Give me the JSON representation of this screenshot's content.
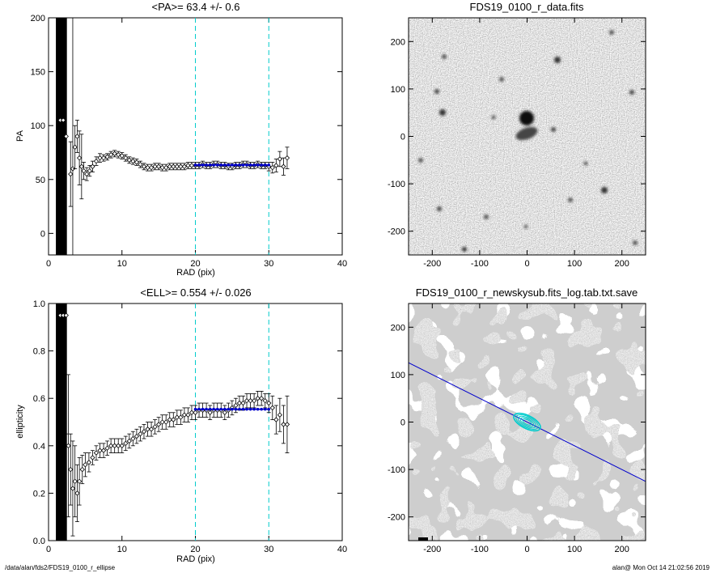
{
  "chart_data": [
    {
      "type": "scatter",
      "title": "<PA>=  63.4 +/-   0.6",
      "xlabel": "RAD (pix)",
      "ylabel": "PA",
      "xlim": [
        0,
        40
      ],
      "ylim": [
        -20,
        200
      ],
      "xticks": [
        0,
        10,
        20,
        30,
        40
      ],
      "yticks": [
        0,
        50,
        100,
        150,
        200
      ],
      "fit_range": [
        20,
        30
      ],
      "fit_value": 63.4,
      "fit_color": "#0000cc",
      "range_line_color": "#00cccc",
      "points": [
        {
          "x": 1.6,
          "y": 105,
          "err": 150
        },
        {
          "x": 2.0,
          "y": 105,
          "err": 150
        },
        {
          "x": 2.4,
          "y": 90,
          "err": 120
        },
        {
          "x": 3.0,
          "y": 55,
          "err": 30
        },
        {
          "x": 3.3,
          "y": 60,
          "err": 140
        },
        {
          "x": 3.6,
          "y": 80,
          "err": 20
        },
        {
          "x": 3.9,
          "y": 90,
          "err": 15
        },
        {
          "x": 4.2,
          "y": 70,
          "err": 25
        },
        {
          "x": 4.5,
          "y": 62,
          "err": 30
        },
        {
          "x": 4.8,
          "y": 58,
          "err": 8
        },
        {
          "x": 5.2,
          "y": 55,
          "err": 6
        },
        {
          "x": 5.6,
          "y": 58,
          "err": 5
        },
        {
          "x": 6.0,
          "y": 62,
          "err": 5
        },
        {
          "x": 6.5,
          "y": 67,
          "err": 4
        },
        {
          "x": 7.0,
          "y": 70,
          "err": 4
        },
        {
          "x": 7.5,
          "y": 70,
          "err": 3
        },
        {
          "x": 8.0,
          "y": 71,
          "err": 3
        },
        {
          "x": 8.5,
          "y": 73,
          "err": 3
        },
        {
          "x": 9.0,
          "y": 74,
          "err": 3
        },
        {
          "x": 9.5,
          "y": 73,
          "err": 3
        },
        {
          "x": 10.0,
          "y": 72,
          "err": 3
        },
        {
          "x": 10.5,
          "y": 70,
          "err": 3
        },
        {
          "x": 11.0,
          "y": 68,
          "err": 3
        },
        {
          "x": 11.5,
          "y": 67,
          "err": 3
        },
        {
          "x": 12.0,
          "y": 66,
          "err": 3
        },
        {
          "x": 12.5,
          "y": 64,
          "err": 3
        },
        {
          "x": 13.0,
          "y": 62,
          "err": 3
        },
        {
          "x": 13.5,
          "y": 61,
          "err": 3
        },
        {
          "x": 14.0,
          "y": 61,
          "err": 3
        },
        {
          "x": 14.5,
          "y": 62,
          "err": 3
        },
        {
          "x": 15.0,
          "y": 62,
          "err": 3
        },
        {
          "x": 15.5,
          "y": 61,
          "err": 3
        },
        {
          "x": 16.0,
          "y": 61,
          "err": 3
        },
        {
          "x": 16.5,
          "y": 62,
          "err": 3
        },
        {
          "x": 17.0,
          "y": 62,
          "err": 3
        },
        {
          "x": 17.5,
          "y": 62,
          "err": 3
        },
        {
          "x": 18.0,
          "y": 62,
          "err": 3
        },
        {
          "x": 18.5,
          "y": 62,
          "err": 3
        },
        {
          "x": 19.0,
          "y": 63,
          "err": 3
        },
        {
          "x": 19.5,
          "y": 63,
          "err": 3
        },
        {
          "x": 20.0,
          "y": 63,
          "err": 3
        },
        {
          "x": 20.5,
          "y": 63,
          "err": 3
        },
        {
          "x": 21.0,
          "y": 64,
          "err": 3
        },
        {
          "x": 21.5,
          "y": 63,
          "err": 3
        },
        {
          "x": 22.0,
          "y": 63,
          "err": 3
        },
        {
          "x": 22.5,
          "y": 64,
          "err": 3
        },
        {
          "x": 23.0,
          "y": 64,
          "err": 3
        },
        {
          "x": 23.5,
          "y": 63,
          "err": 3
        },
        {
          "x": 24.0,
          "y": 63,
          "err": 3
        },
        {
          "x": 24.5,
          "y": 62,
          "err": 3
        },
        {
          "x": 25.0,
          "y": 62,
          "err": 3
        },
        {
          "x": 25.5,
          "y": 63,
          "err": 3
        },
        {
          "x": 26.0,
          "y": 63,
          "err": 3
        },
        {
          "x": 26.5,
          "y": 64,
          "err": 3
        },
        {
          "x": 27.0,
          "y": 64,
          "err": 3
        },
        {
          "x": 27.5,
          "y": 63,
          "err": 3
        },
        {
          "x": 28.0,
          "y": 63,
          "err": 3
        },
        {
          "x": 28.5,
          "y": 64,
          "err": 3
        },
        {
          "x": 29.0,
          "y": 63,
          "err": 3
        },
        {
          "x": 29.5,
          "y": 63,
          "err": 3
        },
        {
          "x": 30.0,
          "y": 62,
          "err": 4
        },
        {
          "x": 30.5,
          "y": 61,
          "err": 5
        },
        {
          "x": 31.0,
          "y": 63,
          "err": 6
        },
        {
          "x": 31.5,
          "y": 69,
          "err": 7
        },
        {
          "x": 32.0,
          "y": 62,
          "err": 8
        },
        {
          "x": 32.5,
          "y": 70,
          "err": 10
        }
      ]
    },
    {
      "type": "heatmap",
      "title": "FDS19_0100_r_data.fits",
      "xlim": [
        -250,
        250
      ],
      "ylim": [
        -250,
        250
      ],
      "xticks": [
        -200,
        -100,
        0,
        100,
        200
      ],
      "yticks": [
        -200,
        -100,
        0,
        100,
        200
      ],
      "grid": false,
      "colormap": "grayscale"
    },
    {
      "type": "scatter",
      "title": "<ELL>= 0.554 +/-  0.026",
      "xlabel": "RAD (pix)",
      "ylabel": "ellipticity",
      "xlim": [
        0,
        40
      ],
      "ylim": [
        0.0,
        1.0
      ],
      "xticks": [
        0,
        10,
        20,
        30,
        40
      ],
      "yticks": [
        "0.0",
        "0.2",
        "0.4",
        "0.6",
        "0.8",
        "1.0"
      ],
      "fit_range": [
        20,
        30
      ],
      "fit_value": 0.554,
      "fit_color": "#0000cc",
      "range_line_color": "#00cccc",
      "points": [
        {
          "x": 1.6,
          "y": 0.95,
          "err": 0.5
        },
        {
          "x": 2.0,
          "y": 0.95,
          "err": 0.5
        },
        {
          "x": 2.4,
          "y": 0.95,
          "err": 0.5
        },
        {
          "x": 2.7,
          "y": 0.4,
          "err": 0.3
        },
        {
          "x": 3.0,
          "y": 0.3,
          "err": 0.15
        },
        {
          "x": 3.3,
          "y": 0.22,
          "err": 0.2
        },
        {
          "x": 3.6,
          "y": 0.25,
          "err": 0.15
        },
        {
          "x": 3.9,
          "y": 0.2,
          "err": 0.12
        },
        {
          "x": 4.2,
          "y": 0.25,
          "err": 0.1
        },
        {
          "x": 4.6,
          "y": 0.3,
          "err": 0.06
        },
        {
          "x": 5.0,
          "y": 0.32,
          "err": 0.05
        },
        {
          "x": 5.5,
          "y": 0.33,
          "err": 0.04
        },
        {
          "x": 6.0,
          "y": 0.35,
          "err": 0.03
        },
        {
          "x": 6.5,
          "y": 0.37,
          "err": 0.03
        },
        {
          "x": 7.0,
          "y": 0.38,
          "err": 0.03
        },
        {
          "x": 7.5,
          "y": 0.38,
          "err": 0.03
        },
        {
          "x": 8.0,
          "y": 0.39,
          "err": 0.03
        },
        {
          "x": 8.5,
          "y": 0.4,
          "err": 0.03
        },
        {
          "x": 9.0,
          "y": 0.4,
          "err": 0.03
        },
        {
          "x": 9.5,
          "y": 0.4,
          "err": 0.03
        },
        {
          "x": 10.0,
          "y": 0.4,
          "err": 0.03
        },
        {
          "x": 10.5,
          "y": 0.41,
          "err": 0.03
        },
        {
          "x": 11.0,
          "y": 0.42,
          "err": 0.03
        },
        {
          "x": 11.5,
          "y": 0.43,
          "err": 0.03
        },
        {
          "x": 12.0,
          "y": 0.44,
          "err": 0.03
        },
        {
          "x": 12.5,
          "y": 0.45,
          "err": 0.03
        },
        {
          "x": 13.0,
          "y": 0.46,
          "err": 0.03
        },
        {
          "x": 13.5,
          "y": 0.47,
          "err": 0.03
        },
        {
          "x": 14.0,
          "y": 0.47,
          "err": 0.03
        },
        {
          "x": 14.5,
          "y": 0.48,
          "err": 0.03
        },
        {
          "x": 15.0,
          "y": 0.49,
          "err": 0.03
        },
        {
          "x": 15.5,
          "y": 0.5,
          "err": 0.03
        },
        {
          "x": 16.0,
          "y": 0.5,
          "err": 0.03
        },
        {
          "x": 16.5,
          "y": 0.51,
          "err": 0.03
        },
        {
          "x": 17.0,
          "y": 0.51,
          "err": 0.03
        },
        {
          "x": 17.5,
          "y": 0.52,
          "err": 0.03
        },
        {
          "x": 18.0,
          "y": 0.52,
          "err": 0.03
        },
        {
          "x": 18.5,
          "y": 0.53,
          "err": 0.03
        },
        {
          "x": 19.0,
          "y": 0.53,
          "err": 0.03
        },
        {
          "x": 19.5,
          "y": 0.54,
          "err": 0.03
        },
        {
          "x": 20.0,
          "y": 0.54,
          "err": 0.03
        },
        {
          "x": 20.5,
          "y": 0.55,
          "err": 0.03
        },
        {
          "x": 21.0,
          "y": 0.55,
          "err": 0.03
        },
        {
          "x": 21.5,
          "y": 0.55,
          "err": 0.03
        },
        {
          "x": 22.0,
          "y": 0.54,
          "err": 0.03
        },
        {
          "x": 22.5,
          "y": 0.55,
          "err": 0.03
        },
        {
          "x": 23.0,
          "y": 0.55,
          "err": 0.03
        },
        {
          "x": 23.5,
          "y": 0.55,
          "err": 0.03
        },
        {
          "x": 24.0,
          "y": 0.54,
          "err": 0.03
        },
        {
          "x": 24.5,
          "y": 0.55,
          "err": 0.03
        },
        {
          "x": 25.0,
          "y": 0.56,
          "err": 0.03
        },
        {
          "x": 25.5,
          "y": 0.57,
          "err": 0.03
        },
        {
          "x": 26.0,
          "y": 0.58,
          "err": 0.03
        },
        {
          "x": 26.5,
          "y": 0.58,
          "err": 0.03
        },
        {
          "x": 27.0,
          "y": 0.59,
          "err": 0.03
        },
        {
          "x": 27.5,
          "y": 0.59,
          "err": 0.03
        },
        {
          "x": 28.0,
          "y": 0.59,
          "err": 0.03
        },
        {
          "x": 28.5,
          "y": 0.6,
          "err": 0.03
        },
        {
          "x": 29.0,
          "y": 0.6,
          "err": 0.03
        },
        {
          "x": 29.5,
          "y": 0.59,
          "err": 0.03
        },
        {
          "x": 30.0,
          "y": 0.58,
          "err": 0.04
        },
        {
          "x": 30.5,
          "y": 0.56,
          "err": 0.05
        },
        {
          "x": 31.0,
          "y": 0.51,
          "err": 0.06
        },
        {
          "x": 31.5,
          "y": 0.53,
          "err": 0.07
        },
        {
          "x": 32.0,
          "y": 0.49,
          "err": 0.08
        },
        {
          "x": 32.5,
          "y": 0.49,
          "err": 0.12
        }
      ]
    },
    {
      "type": "heatmap",
      "title": "FDS19_0100_r_newskysub.fits_log.tab.txt.save",
      "xlim": [
        -250,
        250
      ],
      "ylim": [
        -250,
        250
      ],
      "xticks": [
        -200,
        -100,
        0,
        100,
        200
      ],
      "yticks": [
        -200,
        -100,
        0,
        100,
        200
      ],
      "grid": false,
      "colormap": "grayscale",
      "ellipse_color": "#00cccc",
      "major_axis_color": "#0000cc",
      "position_angle": 63.4,
      "ellipticity": 0.554
    }
  ],
  "footer": {
    "left": "/data/alan/fds2/FDS19_0100_r_ellipse",
    "right": "alan@  Mon Oct 14 21:02:56 2019"
  }
}
